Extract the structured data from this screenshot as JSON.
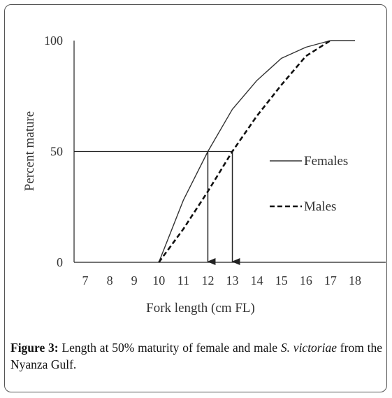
{
  "chart_data": {
    "type": "line",
    "xlabel": "Fork length (cm FL)",
    "ylabel": "Percent mature",
    "xlim": [
      7,
      18
    ],
    "ylim": [
      0,
      100
    ],
    "x_ticks": [
      "7",
      "8",
      "9",
      "10",
      "11",
      "12",
      "13",
      "14",
      "15",
      "16",
      "17",
      "18"
    ],
    "y_ticks": [
      "0",
      "50",
      "100"
    ],
    "grid": false,
    "legend_position": "right",
    "series": [
      {
        "name": "Females",
        "style": "solid",
        "color": "#333333",
        "x": [
          10,
          11,
          12,
          13,
          14,
          15,
          16,
          17,
          18
        ],
        "y": [
          0,
          28,
          50,
          69,
          82,
          92,
          97,
          100,
          100
        ]
      },
      {
        "name": "Males",
        "style": "dashed",
        "color": "#111111",
        "x": [
          10,
          11,
          12,
          13,
          14,
          15,
          16,
          17
        ],
        "y": [
          0,
          15,
          32,
          50,
          66,
          80,
          93,
          100
        ]
      }
    ],
    "annotations": [
      {
        "type": "reference-line",
        "from": [
          7,
          50
        ],
        "to": [
          13,
          50
        ]
      },
      {
        "type": "arrow",
        "x": 12,
        "from_y": 50,
        "to_y": 0
      },
      {
        "type": "arrow",
        "x": 13,
        "from_y": 50,
        "to_y": 0
      }
    ]
  },
  "caption": {
    "label": "Figure 3:",
    "text_before": " Length at 50% maturity of female and male ",
    "species": "S. victoriae",
    "text_after": " from the Nyanza Gulf."
  }
}
